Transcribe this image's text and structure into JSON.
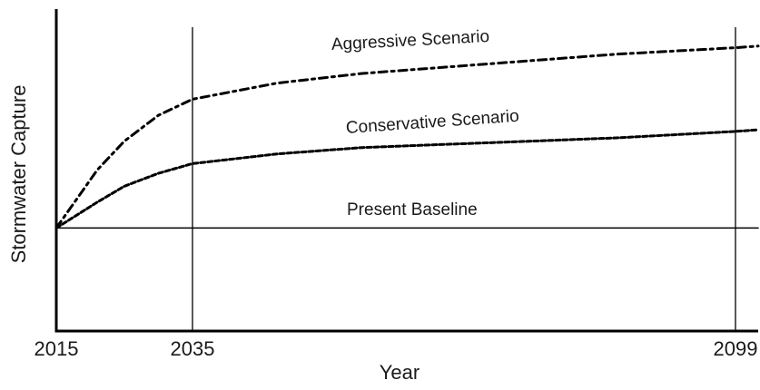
{
  "chart_data": {
    "type": "line",
    "xlabel": "Year",
    "ylabel": "Stormwater Capture",
    "x": [
      2015,
      2018,
      2021,
      2025,
      2030,
      2035,
      2045,
      2055,
      2065,
      2075,
      2085,
      2099,
      2102
    ],
    "series": [
      {
        "name": "Aggressive Scenario",
        "color": "#000000",
        "dash": "9,5,3,5",
        "values": [
          32,
          41,
          50,
          59,
          67,
          72,
          77,
          80,
          82,
          84,
          86,
          88,
          88.5
        ]
      },
      {
        "name": "Conservative Scenario",
        "color": "#000000",
        "dash": "5,3",
        "values": [
          32,
          36,
          40,
          45,
          49,
          52,
          55,
          57,
          58,
          59,
          60,
          62,
          62.5
        ]
      },
      {
        "name": "Present Baseline",
        "color": "#000000",
        "values": [
          32,
          32,
          32,
          32,
          32,
          32,
          32,
          32,
          32,
          32,
          32,
          32,
          32
        ]
      }
    ],
    "xlim": [
      2015,
      2102
    ],
    "xticks": [
      2015,
      2035,
      2099
    ],
    "ylim": [
      0,
      100
    ],
    "grid": true
  }
}
